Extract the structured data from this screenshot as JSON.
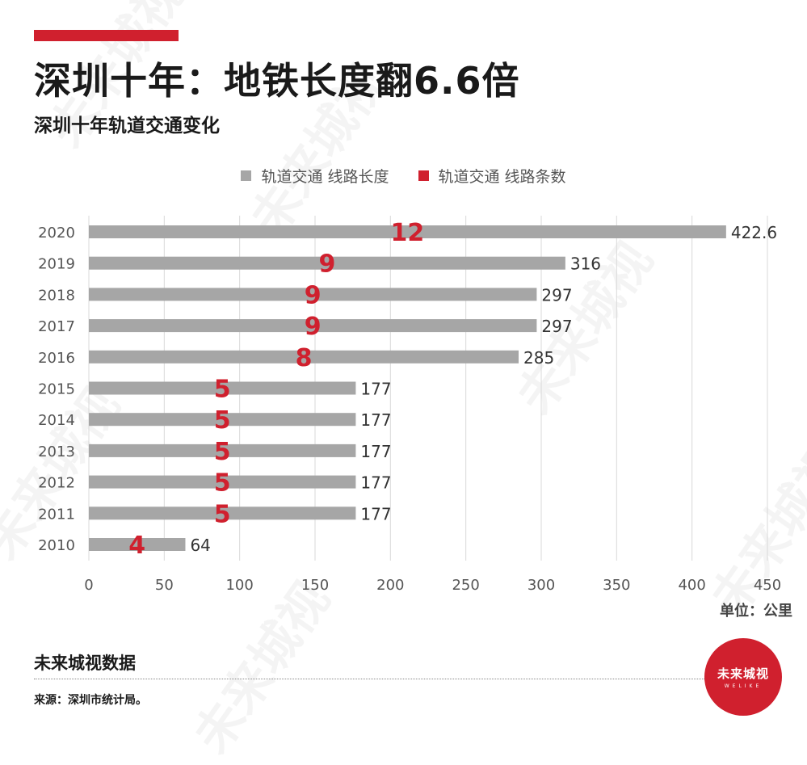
{
  "header": {
    "title": "深圳十年：地铁长度翻6.6倍",
    "subtitle": "深圳十年轨道交通变化"
  },
  "legend": [
    {
      "label": "轨道交通 线路长度",
      "color": "#a6a6a6"
    },
    {
      "label": "轨道交通 线路条数",
      "color": "#d0202e"
    }
  ],
  "chart_data": {
    "type": "bar",
    "orientation": "horizontal",
    "categories": [
      "2020",
      "2019",
      "2018",
      "2017",
      "2016",
      "2015",
      "2014",
      "2013",
      "2012",
      "2011",
      "2010"
    ],
    "series": [
      {
        "name": "轨道交通 线路长度",
        "values": [
          422.6,
          316,
          297,
          297,
          285,
          177,
          177,
          177,
          177,
          177,
          64
        ]
      },
      {
        "name": "轨道交通 线路条数",
        "values": [
          12,
          9,
          9,
          9,
          8,
          5,
          5,
          5,
          5,
          5,
          4
        ]
      }
    ],
    "xlim": [
      0,
      450
    ],
    "xticks": [
      0,
      50,
      100,
      150,
      200,
      250,
      300,
      350,
      400,
      450
    ],
    "grid": true,
    "xlabel": "单位：公里"
  },
  "footer": {
    "brand": "未来城视数据",
    "source": "来源：深圳市统计局。"
  },
  "logo": {
    "text": "未来城视",
    "sub": "WELIKE"
  },
  "watermark": "未来城视",
  "colors": {
    "accent": "#d0202e",
    "bar": "#a6a6a6"
  }
}
